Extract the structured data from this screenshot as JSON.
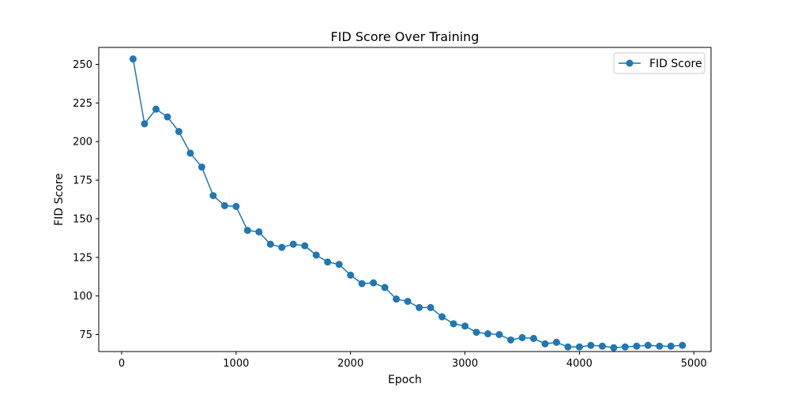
{
  "chart_data": {
    "type": "line",
    "title": "FID Score Over Training",
    "xlabel": "Epoch",
    "ylabel": "FID Score",
    "xlim": [
      -200,
      5150
    ],
    "ylim": [
      64,
      261
    ],
    "xticks": [
      0,
      1000,
      2000,
      3000,
      4000,
      5000
    ],
    "yticks": [
      75,
      100,
      125,
      150,
      175,
      200,
      225,
      250
    ],
    "grid": false,
    "legend_position": "top-right",
    "series": [
      {
        "name": "FID Score",
        "color": "#1f77b4",
        "marker": "circle",
        "x": [
          100,
          200,
          300,
          400,
          500,
          600,
          700,
          800,
          900,
          1000,
          1100,
          1200,
          1300,
          1400,
          1500,
          1600,
          1700,
          1800,
          1900,
          2000,
          2100,
          2200,
          2300,
          2400,
          2500,
          2600,
          2700,
          2800,
          2900,
          3000,
          3100,
          3200,
          3300,
          3400,
          3500,
          3600,
          3700,
          3800,
          3900,
          4000,
          4100,
          4200,
          4300,
          4400,
          4500,
          4600,
          4700,
          4800,
          4900
        ],
        "y": [
          253.5,
          211.5,
          221,
          216,
          206.5,
          192.5,
          183.5,
          165,
          158.5,
          158,
          142.5,
          141.5,
          133.5,
          131.5,
          133.5,
          132.5,
          126.5,
          122,
          120.5,
          113.5,
          108,
          108.5,
          105.5,
          98,
          96.5,
          92.5,
          92.5,
          86.5,
          82,
          80.5,
          76.5,
          75.5,
          75,
          71.5,
          73,
          72.5,
          69,
          70,
          67,
          67,
          68,
          67.5,
          66.5,
          67,
          67.5,
          68,
          67.5,
          67.5,
          68
        ]
      }
    ]
  }
}
